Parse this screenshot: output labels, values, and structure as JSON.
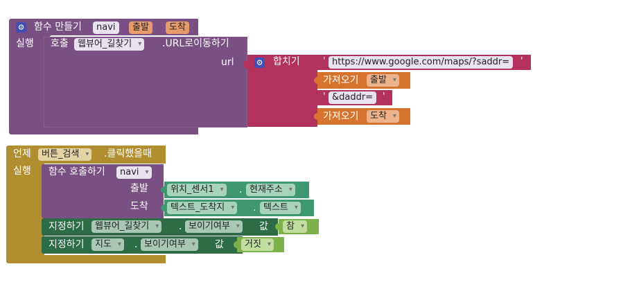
{
  "proc": {
    "keyword": "함수 만들기",
    "name": "navi",
    "params": [
      "출발",
      "도착"
    ],
    "do_label": "실행"
  },
  "call_webview": {
    "keyword": "호출",
    "component": "웹뷰어_길찾기",
    "method": ".URL로이동하기",
    "arg_label": "url"
  },
  "join": {
    "label": "합치기",
    "url_text": "https://www.google.com/maps/?saddr=",
    "get1_label": "가져오기",
    "get1_var": "출발",
    "daddr_text": "&daddr=",
    "get2_label": "가져오기",
    "get2_var": "도착",
    "quote": "'"
  },
  "event": {
    "keyword": "언제",
    "component": "버튼_검색",
    "event_name": ".클릭했을때",
    "do_label": "실행"
  },
  "call_proc": {
    "keyword": "함수 호출하기",
    "name": "navi",
    "arg1_label": "출발",
    "arg2_label": "도착"
  },
  "arg1_value": {
    "component": "위치_센서1",
    "dot": ".",
    "property": "현재주소"
  },
  "arg2_value": {
    "component": "텍스트_도착지",
    "dot": ".",
    "property": "텍스트"
  },
  "set1": {
    "keyword": "지정하기",
    "component": "웹뷰어_길찾기",
    "dot": ".",
    "property": "보이기여부",
    "value_label": "값",
    "value": "참"
  },
  "set2": {
    "keyword": "지정하기",
    "component": "지도",
    "dot": ".",
    "property": "보이기여부",
    "value_label": "값",
    "value": "거짓"
  },
  "colors": {
    "procedure": "#7a4f84",
    "text_join": "#b3325d",
    "variable": "#d6742f",
    "event": "#b18f30",
    "component_set": "#2e6b47",
    "component_get": "#3f9871",
    "logic": "#7db24a"
  }
}
